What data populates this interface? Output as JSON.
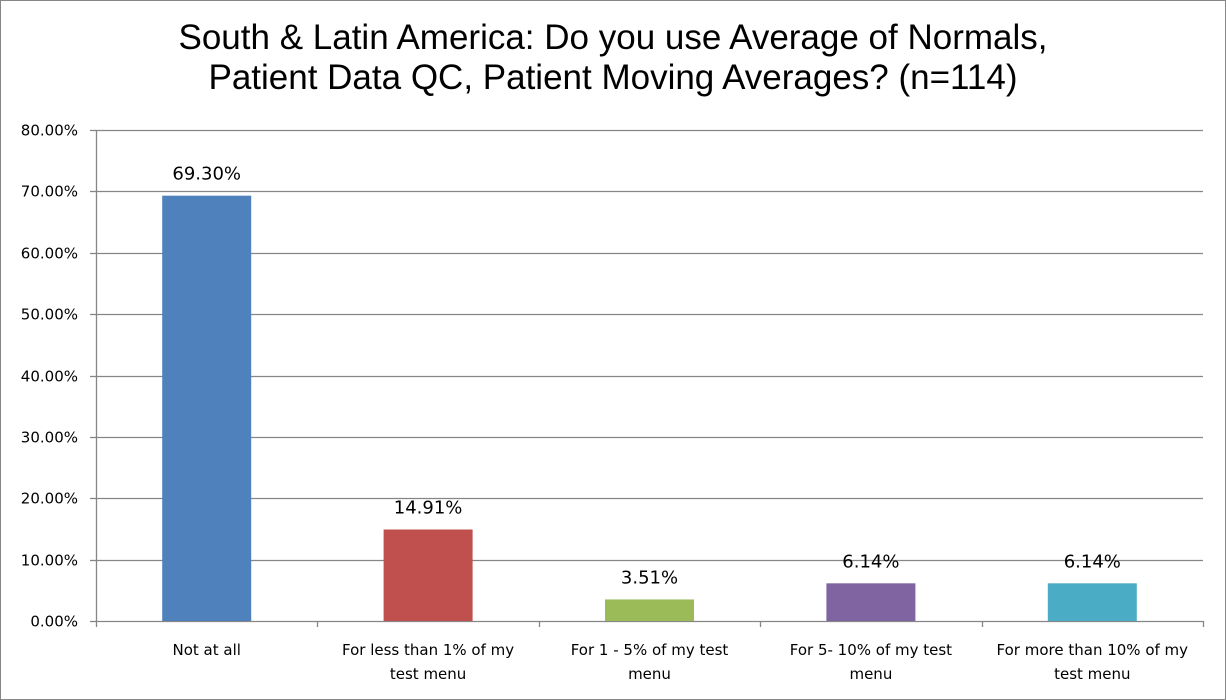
{
  "chart_data": {
    "type": "bar",
    "title_lines": [
      "South & Latin America: Do you use Average of Normals,",
      "Patient Data QC, Patient Moving Averages? (n=114)"
    ],
    "categories": [
      [
        "Not at all"
      ],
      [
        "For less than 1% of my",
        "test menu"
      ],
      [
        "For 1 - 5% of my test",
        "menu"
      ],
      [
        "For 5- 10% of my test",
        "menu"
      ],
      [
        "For more than 10% of my",
        "test menu"
      ]
    ],
    "values": [
      69.3,
      14.91,
      3.51,
      6.14,
      6.14
    ],
    "data_labels": [
      "69.30%",
      "14.91%",
      "3.51%",
      "6.14%",
      "6.14%"
    ],
    "colors": [
      "#4F81BD",
      "#C0504D",
      "#9BBB59",
      "#8064A2",
      "#4BACC6"
    ],
    "ylim": [
      0,
      80
    ],
    "yticks": [
      "0.00%",
      "10.00%",
      "20.00%",
      "30.00%",
      "40.00%",
      "50.00%",
      "60.00%",
      "70.00%",
      "80.00%"
    ],
    "grid": true,
    "xlabel": "",
    "ylabel": ""
  }
}
